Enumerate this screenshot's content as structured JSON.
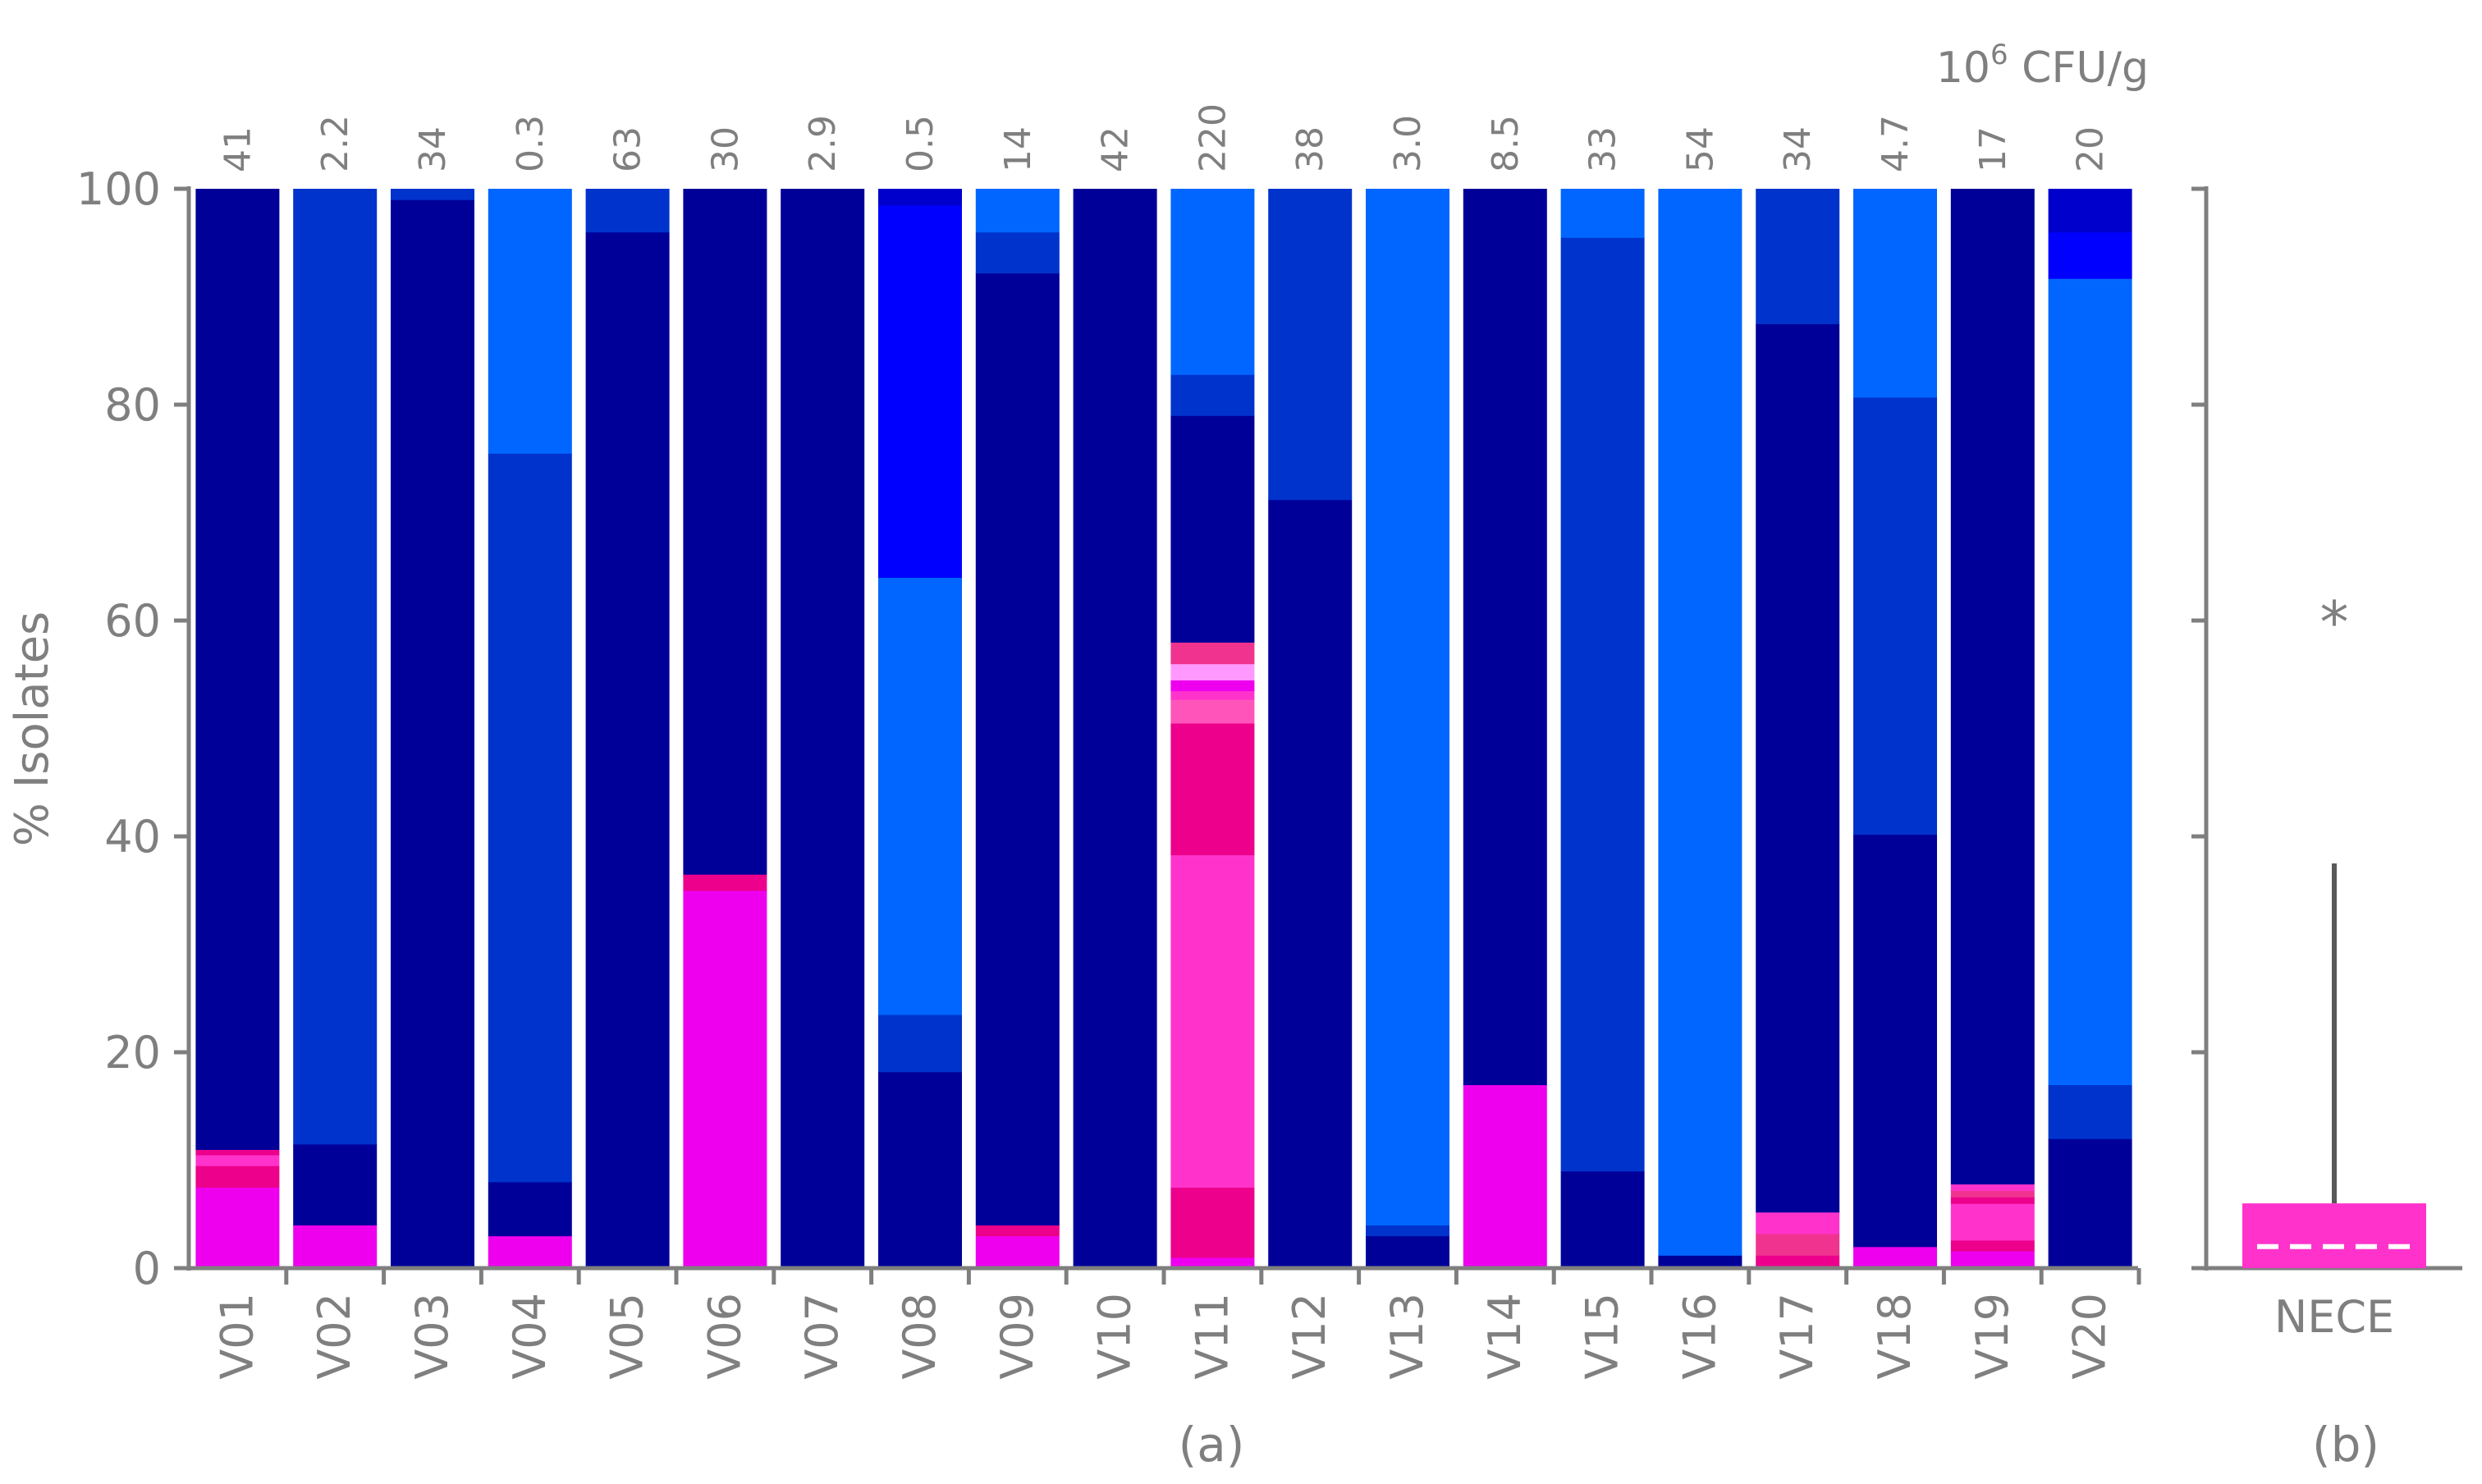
{
  "chart_data": [
    {
      "panel": "(a)",
      "type": "bar",
      "stacked": true,
      "ylabel": "% Isolates",
      "xlabel": "",
      "ylim": [
        0,
        100
      ],
      "yticks": [
        "0",
        "20",
        "40",
        "60",
        "80",
        "100"
      ],
      "top_axis_title_base": "10",
      "top_axis_title_exp": "6",
      "top_axis_title_unit": " CFU/g",
      "categories": [
        "V01",
        "V02",
        "V03",
        "V04",
        "V05",
        "V06",
        "V07",
        "V08",
        "V09",
        "V10",
        "V11",
        "V12",
        "V13",
        "V14",
        "V15",
        "V16",
        "V17",
        "V18",
        "V19",
        "V20"
      ],
      "top_labels": [
        "41",
        "2.2",
        "34",
        "0.3",
        "63",
        "30",
        "2.9",
        "0.5",
        "14",
        "42",
        "220",
        "38",
        "3.0",
        "8.5",
        "33",
        "54",
        "34",
        "4.7",
        "17",
        "20"
      ],
      "colors": {
        "magenta": "#ee00ee",
        "deep-pink": "#ec008c",
        "hot-pink": "#ff33cc",
        "rose": "#f0338f",
        "light-pink": "#ff99ff",
        "pink": "#ff55bb",
        "navy": "#000099",
        "royal-blue": "#0033cc",
        "azure": "#0066ff",
        "blue": "#0000ff",
        "mid-blue": "#0000cc"
      },
      "stacks": [
        [
          [
            "magenta",
            7.5
          ],
          [
            "deep-pink",
            2
          ],
          [
            "hot-pink",
            1
          ],
          [
            "deep-pink",
            0.5
          ],
          [
            "navy",
            89
          ]
        ],
        [
          [
            "magenta",
            4
          ],
          [
            "navy",
            7.5
          ],
          [
            "royal-blue",
            88.5
          ]
        ],
        [
          [
            "navy",
            99
          ],
          [
            "royal-blue",
            1
          ]
        ],
        [
          [
            "magenta",
            3
          ],
          [
            "navy",
            5
          ],
          [
            "royal-blue",
            67.5
          ],
          [
            "azure",
            24.5
          ]
        ],
        [
          [
            "navy",
            96
          ],
          [
            "royal-blue",
            4
          ]
        ],
        [
          [
            "magenta",
            35
          ],
          [
            "deep-pink",
            1.5
          ],
          [
            "navy",
            63.5
          ]
        ],
        [
          [
            "navy",
            100
          ]
        ],
        [
          [
            "navy",
            18.2
          ],
          [
            "royal-blue",
            5.3
          ],
          [
            "azure",
            40.5
          ],
          [
            "blue",
            34.5
          ],
          [
            "mid-blue",
            1.5
          ]
        ],
        [
          [
            "magenta",
            3
          ],
          [
            "deep-pink",
            1
          ],
          [
            "navy",
            88.2
          ],
          [
            "royal-blue",
            3.8
          ],
          [
            "azure",
            4
          ]
        ],
        [
          [
            "navy",
            100
          ]
        ],
        [
          [
            "magenta",
            1
          ],
          [
            "deep-pink",
            6.5
          ],
          [
            "hot-pink",
            30.8
          ],
          [
            "deep-pink",
            12.2
          ],
          [
            "pink",
            2.2
          ],
          [
            "hot-pink",
            0.8
          ],
          [
            "magenta",
            1
          ],
          [
            "light-pink",
            1.5
          ],
          [
            "rose",
            2
          ],
          [
            "navy",
            21
          ],
          [
            "royal-blue",
            3.8
          ],
          [
            "azure",
            17.2
          ]
        ],
        [
          [
            "navy",
            71.2
          ],
          [
            "royal-blue",
            28.8
          ]
        ],
        [
          [
            "navy",
            3
          ],
          [
            "royal-blue",
            1
          ],
          [
            "azure",
            96
          ]
        ],
        [
          [
            "magenta",
            17
          ],
          [
            "navy",
            83
          ]
        ],
        [
          [
            "navy",
            9
          ],
          [
            "royal-blue",
            86.5
          ],
          [
            "azure",
            4.5
          ]
        ],
        [
          [
            "navy",
            1.2
          ],
          [
            "azure",
            98.8
          ]
        ],
        [
          [
            "deep-pink",
            1.2
          ],
          [
            "rose",
            2
          ],
          [
            "hot-pink",
            2
          ],
          [
            "navy",
            82.3
          ],
          [
            "royal-blue",
            12.5
          ]
        ],
        [
          [
            "magenta",
            2
          ],
          [
            "navy",
            38.2
          ],
          [
            "royal-blue",
            40.5
          ],
          [
            "azure",
            19.3
          ]
        ],
        [
          [
            "magenta",
            1.6
          ],
          [
            "deep-pink",
            1
          ],
          [
            "hot-pink",
            3.4
          ],
          [
            "deep-pink",
            0.6
          ],
          [
            "rose",
            0.6
          ],
          [
            "hot-pink",
            0.6
          ],
          [
            "navy",
            92.2
          ]
        ],
        [
          [
            "navy",
            12
          ],
          [
            "royal-blue",
            5
          ],
          [
            "azure",
            74.7
          ],
          [
            "blue",
            4.3
          ],
          [
            "mid-blue",
            4
          ]
        ]
      ]
    },
    {
      "panel": "(b)",
      "type": "bar",
      "categories": [
        "NECE"
      ],
      "values": [
        6
      ],
      "median": 2,
      "error_upper": 37.5,
      "significance_marker": "*",
      "bar_color": "#ff33cc",
      "median_line_color": "#ffffff",
      "ylim": [
        0,
        100
      ]
    }
  ]
}
